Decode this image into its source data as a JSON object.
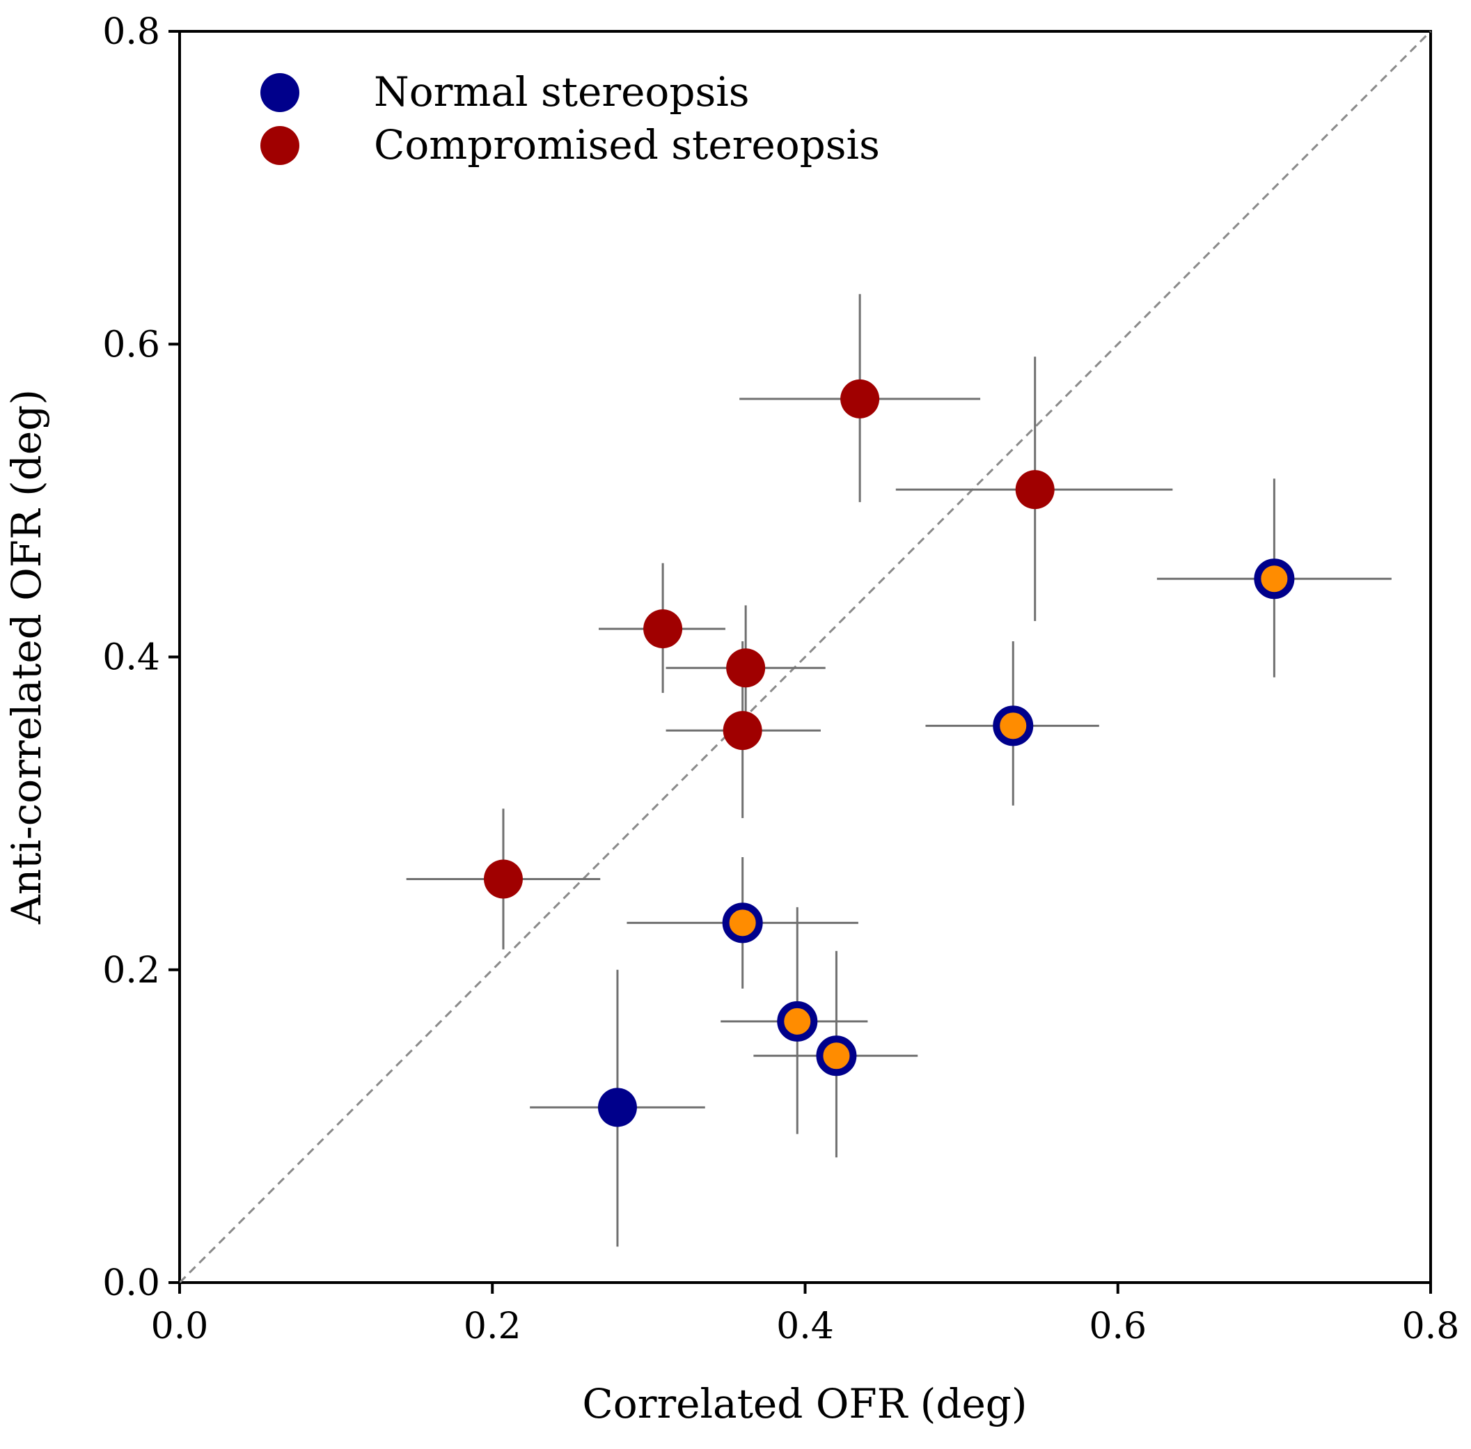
{
  "chart_data": {
    "type": "scatter",
    "xlabel": "Correlated OFR (deg)",
    "ylabel": "Anti-correlated OFR (deg)",
    "xlim": [
      0.0,
      0.8
    ],
    "ylim": [
      0.0,
      0.8
    ],
    "xticks": [
      "0.0",
      "0.2",
      "0.4",
      "0.6",
      "0.8"
    ],
    "yticks": [
      "0.0",
      "0.2",
      "0.4",
      "0.6",
      "0.8"
    ],
    "grid": false,
    "legend_position": "top-left",
    "reference_line": "y = x (dashed)",
    "colors": {
      "normal": "#00008b",
      "compromised": "#a00000",
      "highlight": "#ff8c00",
      "errorbar": "#707070"
    },
    "series": [
      {
        "name": "Normal stereopsis",
        "points": [
          {
            "x": 0.28,
            "y": 0.112,
            "x_err": [
              0.224,
              0.336
            ],
            "y_err": [
              0.023,
              0.2
            ],
            "highlight": false
          },
          {
            "x": 0.36,
            "y": 0.23,
            "x_err": [
              0.286,
              0.434
            ],
            "y_err": [
              0.188,
              0.272
            ],
            "highlight": true
          },
          {
            "x": 0.395,
            "y": 0.167,
            "x_err": [
              0.346,
              0.44
            ],
            "y_err": [
              0.095,
              0.24
            ],
            "highlight": true
          },
          {
            "x": 0.42,
            "y": 0.145,
            "x_err": [
              0.367,
              0.472
            ],
            "y_err": [
              0.08,
              0.212
            ],
            "highlight": true
          },
          {
            "x": 0.533,
            "y": 0.356,
            "x_err": [
              0.477,
              0.588
            ],
            "y_err": [
              0.305,
              0.41
            ],
            "highlight": true
          },
          {
            "x": 0.7,
            "y": 0.45,
            "x_err": [
              0.625,
              0.775
            ],
            "y_err": [
              0.387,
              0.514
            ],
            "highlight": true
          }
        ]
      },
      {
        "name": "Compromised stereopsis",
        "points": [
          {
            "x": 0.207,
            "y": 0.258,
            "x_err": [
              0.145,
              0.269
            ],
            "y_err": [
              0.213,
              0.303
            ],
            "highlight": false
          },
          {
            "x": 0.309,
            "y": 0.418,
            "x_err": [
              0.268,
              0.349
            ],
            "y_err": [
              0.377,
              0.46
            ],
            "highlight": false
          },
          {
            "x": 0.362,
            "y": 0.393,
            "x_err": [
              0.311,
              0.413
            ],
            "y_err": [
              0.353,
              0.433
            ],
            "highlight": false
          },
          {
            "x": 0.36,
            "y": 0.353,
            "x_err": [
              0.311,
              0.41
            ],
            "y_err": [
              0.297,
              0.41
            ],
            "highlight": false
          },
          {
            "x": 0.435,
            "y": 0.565,
            "x_err": [
              0.358,
              0.512
            ],
            "y_err": [
              0.499,
              0.632
            ],
            "highlight": false
          },
          {
            "x": 0.547,
            "y": 0.507,
            "x_err": [
              0.458,
              0.635
            ],
            "y_err": [
              0.423,
              0.592
            ],
            "highlight": false
          }
        ]
      }
    ]
  }
}
